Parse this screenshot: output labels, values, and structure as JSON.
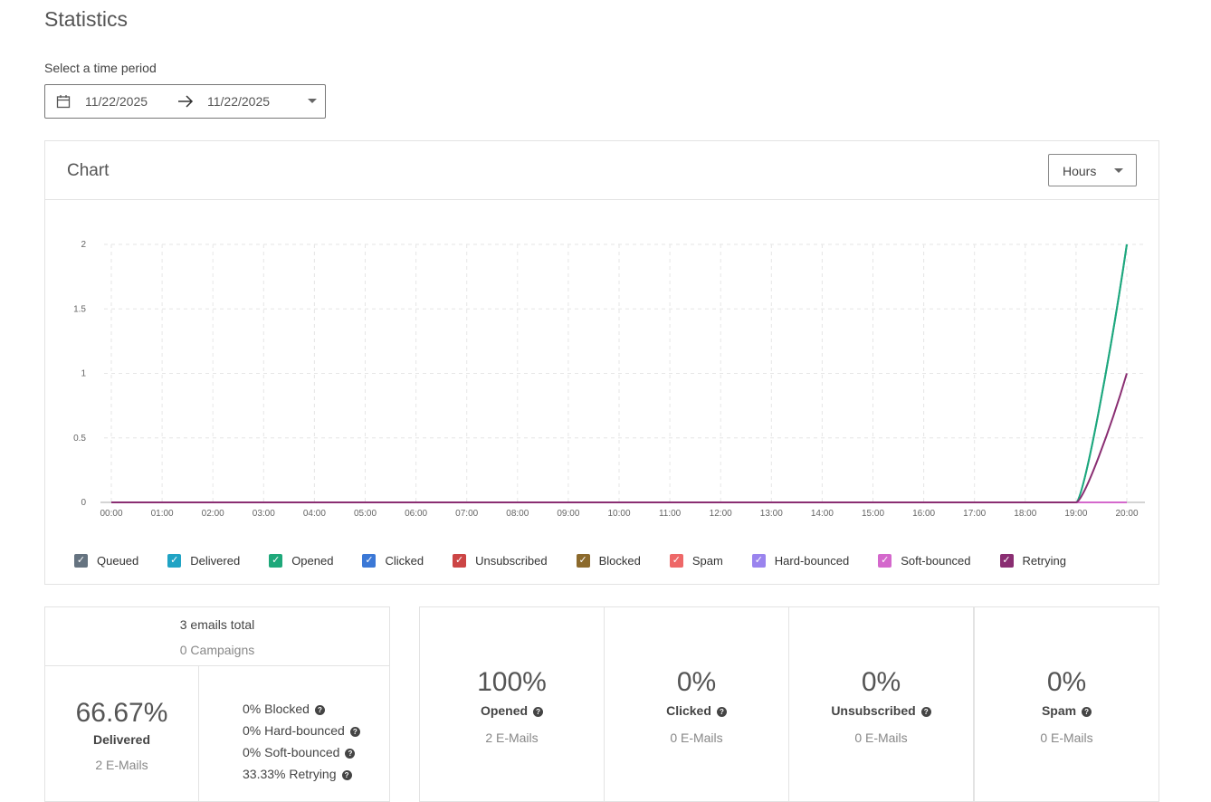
{
  "title": "Statistics",
  "period_label": "Select a time period",
  "date_from": "11/22/2025",
  "date_to": "11/22/2025",
  "chart_card": {
    "title": "Chart",
    "granularity": "Hours"
  },
  "chart_data": {
    "type": "line",
    "x": [
      "00:00",
      "01:00",
      "02:00",
      "03:00",
      "04:00",
      "05:00",
      "06:00",
      "07:00",
      "08:00",
      "09:00",
      "10:00",
      "11:00",
      "12:00",
      "13:00",
      "14:00",
      "15:00",
      "16:00",
      "17:00",
      "18:00",
      "19:00",
      "20:00"
    ],
    "yticks": [
      "0",
      "0.5",
      "1",
      "1.5",
      "2"
    ],
    "ylim": [
      0,
      2
    ],
    "grid": true,
    "legend_position": "bottom",
    "series": [
      {
        "name": "Queued",
        "color": "#657380",
        "values": [
          0,
          0,
          0,
          0,
          0,
          0,
          0,
          0,
          0,
          0,
          0,
          0,
          0,
          0,
          0,
          0,
          0,
          0,
          0,
          0,
          0
        ]
      },
      {
        "name": "Delivered",
        "color": "#20a3c4",
        "values": [
          0,
          0,
          0,
          0,
          0,
          0,
          0,
          0,
          0,
          0,
          0,
          0,
          0,
          0,
          0,
          0,
          0,
          0,
          0,
          0,
          2
        ]
      },
      {
        "name": "Opened",
        "color": "#1ea87a",
        "values": [
          0,
          0,
          0,
          0,
          0,
          0,
          0,
          0,
          0,
          0,
          0,
          0,
          0,
          0,
          0,
          0,
          0,
          0,
          0,
          0,
          2
        ]
      },
      {
        "name": "Clicked",
        "color": "#3b78d6",
        "values": [
          0,
          0,
          0,
          0,
          0,
          0,
          0,
          0,
          0,
          0,
          0,
          0,
          0,
          0,
          0,
          0,
          0,
          0,
          0,
          0,
          0
        ]
      },
      {
        "name": "Unsubscribed",
        "color": "#cc4545",
        "values": [
          0,
          0,
          0,
          0,
          0,
          0,
          0,
          0,
          0,
          0,
          0,
          0,
          0,
          0,
          0,
          0,
          0,
          0,
          0,
          0,
          0
        ]
      },
      {
        "name": "Blocked",
        "color": "#8c6a2c",
        "values": [
          0,
          0,
          0,
          0,
          0,
          0,
          0,
          0,
          0,
          0,
          0,
          0,
          0,
          0,
          0,
          0,
          0,
          0,
          0,
          0,
          0
        ]
      },
      {
        "name": "Spam",
        "color": "#ee6868",
        "values": [
          0,
          0,
          0,
          0,
          0,
          0,
          0,
          0,
          0,
          0,
          0,
          0,
          0,
          0,
          0,
          0,
          0,
          0,
          0,
          0,
          0
        ]
      },
      {
        "name": "Hard-bounced",
        "color": "#9a84ee",
        "values": [
          0,
          0,
          0,
          0,
          0,
          0,
          0,
          0,
          0,
          0,
          0,
          0,
          0,
          0,
          0,
          0,
          0,
          0,
          0,
          0,
          0
        ]
      },
      {
        "name": "Soft-bounced",
        "color": "#d468cc",
        "values": [
          0,
          0,
          0,
          0,
          0,
          0,
          0,
          0,
          0,
          0,
          0,
          0,
          0,
          0,
          0,
          0,
          0,
          0,
          0,
          0,
          0
        ]
      },
      {
        "name": "Retrying",
        "color": "#8a2e72",
        "values": [
          0,
          0,
          0,
          0,
          0,
          0,
          0,
          0,
          0,
          0,
          0,
          0,
          0,
          0,
          0,
          0,
          0,
          0,
          0,
          0,
          1
        ]
      }
    ]
  },
  "summary": {
    "total": "3 emails total",
    "campaigns": "0 Campaigns",
    "delivered_pct": "66.67%",
    "delivered_label": "Delivered",
    "delivered_count": "2 E-Mails",
    "breakdown": [
      "0% Blocked",
      "0% Hard-bounced",
      "0% Soft-bounced",
      "33.33% Retrying"
    ]
  },
  "stats": [
    {
      "value": "100%",
      "label": "Opened",
      "count": "2 E-Mails"
    },
    {
      "value": "0%",
      "label": "Clicked",
      "count": "0 E-Mails"
    },
    {
      "value": "0%",
      "label": "Unsubscribed",
      "count": "0 E-Mails"
    },
    {
      "value": "0%",
      "label": "Spam",
      "count": "0 E-Mails"
    }
  ],
  "help_glyph": "?"
}
